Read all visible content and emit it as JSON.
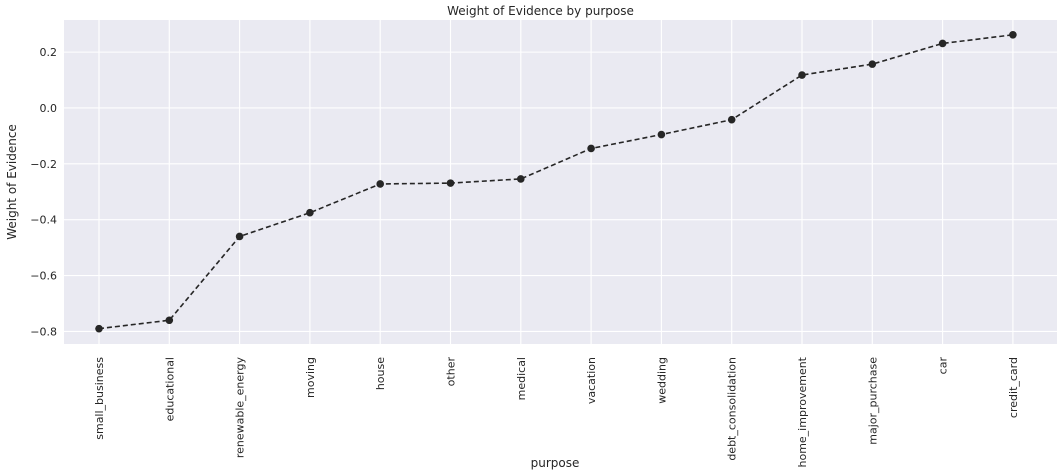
{
  "chart_data": {
    "type": "line",
    "title": "Weight of Evidence by purpose",
    "xlabel": "purpose",
    "ylabel": "Weight of Evidence",
    "categories": [
      "small_business",
      "educational",
      "renewable_energy",
      "moving",
      "house",
      "other",
      "medical",
      "vacation",
      "wedding",
      "debt_consolidation",
      "home_improvement",
      "major_purchase",
      "car",
      "credit_card"
    ],
    "series": [
      {
        "values": [
          -0.79,
          -0.76,
          -0.46,
          -0.375,
          -0.272,
          -0.269,
          -0.254,
          -0.145,
          -0.095,
          -0.042,
          0.118,
          0.157,
          0.231,
          0.262
        ]
      }
    ],
    "yticks": [
      0.2,
      0.0,
      -0.2,
      -0.4,
      -0.6,
      -0.8
    ],
    "ytick_labels": [
      "0.2",
      "0.0",
      "−0.2",
      "−0.4",
      "−0.6",
      "−0.8"
    ],
    "ylim": [
      -0.845,
      0.315
    ],
    "grid": true,
    "marker": "circle",
    "line_style": "dashed",
    "colors": {
      "background": "#EAEAF2",
      "grid": "#FFFFFF",
      "series": "#262626",
      "text": "#262626"
    }
  }
}
